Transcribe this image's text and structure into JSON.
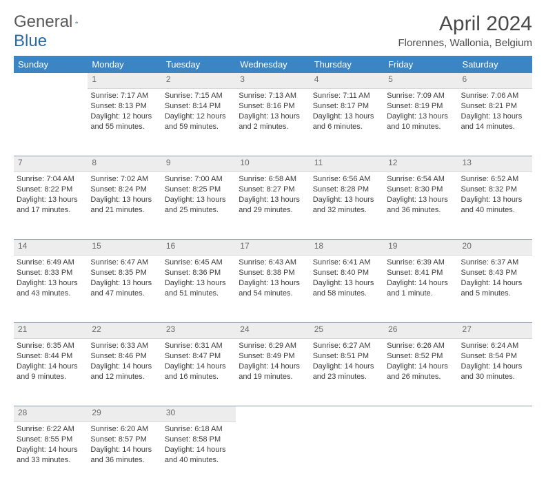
{
  "brand": {
    "word1": "General",
    "word2": "Blue"
  },
  "title": "April 2024",
  "location": "Florennes, Wallonia, Belgium",
  "colors": {
    "header_bg": "#3b85c4",
    "logo_blue": "#2b6aa8",
    "daynum_bg": "#ededed",
    "row_divider": "#8a9cb0",
    "text": "#3a3a3a"
  },
  "day_labels": [
    "Sunday",
    "Monday",
    "Tuesday",
    "Wednesday",
    "Thursday",
    "Friday",
    "Saturday"
  ],
  "weeks": [
    [
      null,
      {
        "n": "1",
        "sr": "7:17 AM",
        "ss": "8:13 PM",
        "d1": "Daylight: 12 hours",
        "d2": "and 55 minutes."
      },
      {
        "n": "2",
        "sr": "7:15 AM",
        "ss": "8:14 PM",
        "d1": "Daylight: 12 hours",
        "d2": "and 59 minutes."
      },
      {
        "n": "3",
        "sr": "7:13 AM",
        "ss": "8:16 PM",
        "d1": "Daylight: 13 hours",
        "d2": "and 2 minutes."
      },
      {
        "n": "4",
        "sr": "7:11 AM",
        "ss": "8:17 PM",
        "d1": "Daylight: 13 hours",
        "d2": "and 6 minutes."
      },
      {
        "n": "5",
        "sr": "7:09 AM",
        "ss": "8:19 PM",
        "d1": "Daylight: 13 hours",
        "d2": "and 10 minutes."
      },
      {
        "n": "6",
        "sr": "7:06 AM",
        "ss": "8:21 PM",
        "d1": "Daylight: 13 hours",
        "d2": "and 14 minutes."
      }
    ],
    [
      {
        "n": "7",
        "sr": "7:04 AM",
        "ss": "8:22 PM",
        "d1": "Daylight: 13 hours",
        "d2": "and 17 minutes."
      },
      {
        "n": "8",
        "sr": "7:02 AM",
        "ss": "8:24 PM",
        "d1": "Daylight: 13 hours",
        "d2": "and 21 minutes."
      },
      {
        "n": "9",
        "sr": "7:00 AM",
        "ss": "8:25 PM",
        "d1": "Daylight: 13 hours",
        "d2": "and 25 minutes."
      },
      {
        "n": "10",
        "sr": "6:58 AM",
        "ss": "8:27 PM",
        "d1": "Daylight: 13 hours",
        "d2": "and 29 minutes."
      },
      {
        "n": "11",
        "sr": "6:56 AM",
        "ss": "8:28 PM",
        "d1": "Daylight: 13 hours",
        "d2": "and 32 minutes."
      },
      {
        "n": "12",
        "sr": "6:54 AM",
        "ss": "8:30 PM",
        "d1": "Daylight: 13 hours",
        "d2": "and 36 minutes."
      },
      {
        "n": "13",
        "sr": "6:52 AM",
        "ss": "8:32 PM",
        "d1": "Daylight: 13 hours",
        "d2": "and 40 minutes."
      }
    ],
    [
      {
        "n": "14",
        "sr": "6:49 AM",
        "ss": "8:33 PM",
        "d1": "Daylight: 13 hours",
        "d2": "and 43 minutes."
      },
      {
        "n": "15",
        "sr": "6:47 AM",
        "ss": "8:35 PM",
        "d1": "Daylight: 13 hours",
        "d2": "and 47 minutes."
      },
      {
        "n": "16",
        "sr": "6:45 AM",
        "ss": "8:36 PM",
        "d1": "Daylight: 13 hours",
        "d2": "and 51 minutes."
      },
      {
        "n": "17",
        "sr": "6:43 AM",
        "ss": "8:38 PM",
        "d1": "Daylight: 13 hours",
        "d2": "and 54 minutes."
      },
      {
        "n": "18",
        "sr": "6:41 AM",
        "ss": "8:40 PM",
        "d1": "Daylight: 13 hours",
        "d2": "and 58 minutes."
      },
      {
        "n": "19",
        "sr": "6:39 AM",
        "ss": "8:41 PM",
        "d1": "Daylight: 14 hours",
        "d2": "and 1 minute."
      },
      {
        "n": "20",
        "sr": "6:37 AM",
        "ss": "8:43 PM",
        "d1": "Daylight: 14 hours",
        "d2": "and 5 minutes."
      }
    ],
    [
      {
        "n": "21",
        "sr": "6:35 AM",
        "ss": "8:44 PM",
        "d1": "Daylight: 14 hours",
        "d2": "and 9 minutes."
      },
      {
        "n": "22",
        "sr": "6:33 AM",
        "ss": "8:46 PM",
        "d1": "Daylight: 14 hours",
        "d2": "and 12 minutes."
      },
      {
        "n": "23",
        "sr": "6:31 AM",
        "ss": "8:47 PM",
        "d1": "Daylight: 14 hours",
        "d2": "and 16 minutes."
      },
      {
        "n": "24",
        "sr": "6:29 AM",
        "ss": "8:49 PM",
        "d1": "Daylight: 14 hours",
        "d2": "and 19 minutes."
      },
      {
        "n": "25",
        "sr": "6:27 AM",
        "ss": "8:51 PM",
        "d1": "Daylight: 14 hours",
        "d2": "and 23 minutes."
      },
      {
        "n": "26",
        "sr": "6:26 AM",
        "ss": "8:52 PM",
        "d1": "Daylight: 14 hours",
        "d2": "and 26 minutes."
      },
      {
        "n": "27",
        "sr": "6:24 AM",
        "ss": "8:54 PM",
        "d1": "Daylight: 14 hours",
        "d2": "and 30 minutes."
      }
    ],
    [
      {
        "n": "28",
        "sr": "6:22 AM",
        "ss": "8:55 PM",
        "d1": "Daylight: 14 hours",
        "d2": "and 33 minutes."
      },
      {
        "n": "29",
        "sr": "6:20 AM",
        "ss": "8:57 PM",
        "d1": "Daylight: 14 hours",
        "d2": "and 36 minutes."
      },
      {
        "n": "30",
        "sr": "6:18 AM",
        "ss": "8:58 PM",
        "d1": "Daylight: 14 hours",
        "d2": "and 40 minutes."
      },
      null,
      null,
      null,
      null
    ]
  ],
  "labels": {
    "sunrise_prefix": "Sunrise: ",
    "sunset_prefix": "Sunset: "
  }
}
